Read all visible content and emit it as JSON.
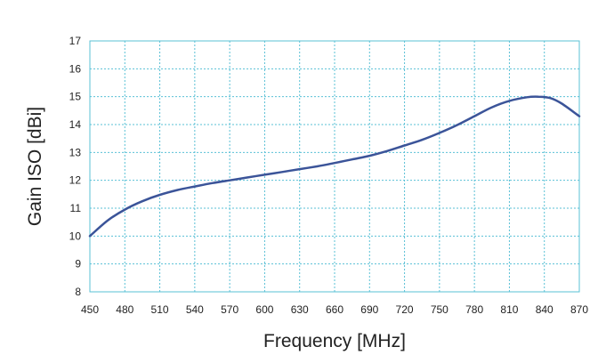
{
  "chart_data": {
    "type": "line",
    "xlabel": "Frequency [MHz]",
    "ylabel": "Gain ISO [dBi]",
    "xlim": [
      450,
      870
    ],
    "ylim": [
      8,
      17
    ],
    "xticks": [
      450,
      480,
      510,
      540,
      570,
      600,
      630,
      660,
      690,
      720,
      750,
      780,
      810,
      840,
      870
    ],
    "yticks": [
      8,
      9,
      10,
      11,
      12,
      13,
      14,
      15,
      16,
      17
    ],
    "grid": true,
    "series": [
      {
        "x": [
          450,
          465,
          480,
          495,
          510,
          525,
          540,
          555,
          570,
          585,
          600,
          615,
          630,
          645,
          660,
          675,
          690,
          705,
          720,
          735,
          750,
          765,
          780,
          795,
          810,
          825,
          835,
          845,
          855,
          870
        ],
        "y": [
          10.0,
          10.55,
          10.95,
          11.25,
          11.48,
          11.65,
          11.78,
          11.9,
          12.0,
          12.1,
          12.2,
          12.3,
          12.4,
          12.5,
          12.62,
          12.75,
          12.88,
          13.05,
          13.25,
          13.45,
          13.7,
          13.98,
          14.3,
          14.62,
          14.85,
          14.98,
          15.0,
          14.95,
          14.75,
          14.3
        ],
        "color": "#3b5499"
      }
    ]
  }
}
